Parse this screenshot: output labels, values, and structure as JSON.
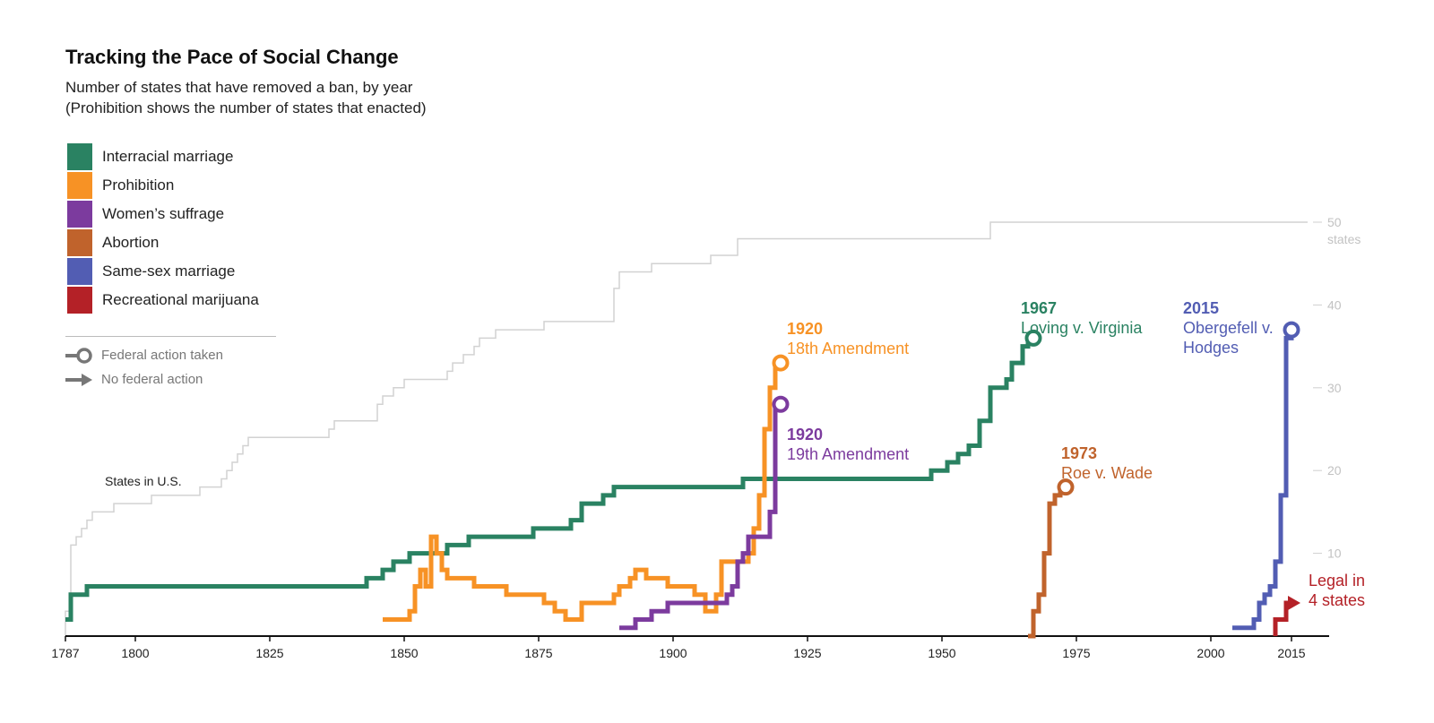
{
  "chart_data": {
    "type": "line",
    "title": "Tracking the Pace of Social Change",
    "subtitle": [
      "Number of states that have removed a ban, by year",
      "(Prohibition shows the number of states that enacted)"
    ],
    "xlabel": "",
    "ylabel": "",
    "xlim": [
      1787,
      2022
    ],
    "ylim": [
      0,
      50
    ],
    "x_ticks": [
      1787,
      1800,
      1825,
      1850,
      1875,
      1900,
      1925,
      1950,
      1975,
      2000,
      2015
    ],
    "y_ticks": [
      10,
      20,
      30,
      40,
      50
    ],
    "y_tick_labels": [
      "10",
      "20",
      "30",
      "40",
      "50"
    ],
    "y_top_unit": "states",
    "grid": false,
    "legend_position": "left",
    "step": true,
    "reference_series": {
      "name": "States in U.S.",
      "color": "#d2d2d2",
      "points": [
        [
          1787,
          0
        ],
        [
          1787,
          3
        ],
        [
          1788,
          11
        ],
        [
          1789,
          12
        ],
        [
          1790,
          13
        ],
        [
          1791,
          14
        ],
        [
          1792,
          15
        ],
        [
          1796,
          16
        ],
        [
          1803,
          17
        ],
        [
          1812,
          18
        ],
        [
          1816,
          19
        ],
        [
          1817,
          20
        ],
        [
          1818,
          21
        ],
        [
          1819,
          22
        ],
        [
          1820,
          23
        ],
        [
          1821,
          24
        ],
        [
          1836,
          25
        ],
        [
          1837,
          26
        ],
        [
          1845,
          28
        ],
        [
          1846,
          29
        ],
        [
          1848,
          30
        ],
        [
          1850,
          31
        ],
        [
          1858,
          32
        ],
        [
          1859,
          33
        ],
        [
          1861,
          34
        ],
        [
          1863,
          35
        ],
        [
          1864,
          36
        ],
        [
          1867,
          37
        ],
        [
          1876,
          38
        ],
        [
          1889,
          42
        ],
        [
          1890,
          44
        ],
        [
          1896,
          45
        ],
        [
          1907,
          46
        ],
        [
          1912,
          48
        ],
        [
          1959,
          50
        ],
        [
          2018,
          50
        ]
      ]
    },
    "series": [
      {
        "name": "Interracial marriage",
        "color": "#2a8262",
        "end": "circle",
        "points": [
          [
            1787,
            2
          ],
          [
            1788,
            5
          ],
          [
            1791,
            6
          ],
          [
            1843,
            7
          ],
          [
            1846,
            8
          ],
          [
            1848,
            9
          ],
          [
            1851,
            10
          ],
          [
            1858,
            11
          ],
          [
            1862,
            12
          ],
          [
            1874,
            13
          ],
          [
            1881,
            14
          ],
          [
            1883,
            16
          ],
          [
            1887,
            17
          ],
          [
            1889,
            18
          ],
          [
            1912,
            18
          ],
          [
            1913,
            19
          ],
          [
            1948,
            20
          ],
          [
            1951,
            21
          ],
          [
            1953,
            22
          ],
          [
            1955,
            23
          ],
          [
            1957,
            26
          ],
          [
            1959,
            30
          ],
          [
            1962,
            31
          ],
          [
            1963,
            33
          ],
          [
            1965,
            35
          ],
          [
            1966,
            36
          ],
          [
            1967,
            36
          ]
        ],
        "annotation_year": "1967",
        "annotation_text": "Loving v. Virginia"
      },
      {
        "name": "Prohibition",
        "color": "#f79225",
        "end": "circle",
        "points": [
          [
            1846,
            2
          ],
          [
            1851,
            3
          ],
          [
            1852,
            6
          ],
          [
            1853,
            8
          ],
          [
            1854,
            6
          ],
          [
            1855,
            12
          ],
          [
            1856,
            10
          ],
          [
            1857,
            8
          ],
          [
            1858,
            7
          ],
          [
            1859,
            7
          ],
          [
            1863,
            6
          ],
          [
            1869,
            5
          ],
          [
            1875,
            5
          ],
          [
            1876,
            4
          ],
          [
            1878,
            3
          ],
          [
            1880,
            2
          ],
          [
            1883,
            4
          ],
          [
            1884,
            4
          ],
          [
            1889,
            5
          ],
          [
            1890,
            6
          ],
          [
            1892,
            7
          ],
          [
            1893,
            8
          ],
          [
            1895,
            7
          ],
          [
            1899,
            6
          ],
          [
            1904,
            5
          ],
          [
            1906,
            3
          ],
          [
            1908,
            5
          ],
          [
            1909,
            9
          ],
          [
            1911,
            9
          ],
          [
            1914,
            10
          ],
          [
            1915,
            13
          ],
          [
            1916,
            17
          ],
          [
            1917,
            25
          ],
          [
            1918,
            30
          ],
          [
            1919,
            33
          ],
          [
            1920,
            33
          ]
        ],
        "annotation_year": "1920",
        "annotation_text": "18th Amendment"
      },
      {
        "name": "Women’s suffrage",
        "color": "#7c3b9e",
        "end": "circle",
        "points": [
          [
            1890,
            1
          ],
          [
            1893,
            2
          ],
          [
            1896,
            3
          ],
          [
            1899,
            4
          ],
          [
            1910,
            5
          ],
          [
            1911,
            6
          ],
          [
            1912,
            9
          ],
          [
            1913,
            10
          ],
          [
            1914,
            12
          ],
          [
            1918,
            15
          ],
          [
            1919,
            28
          ],
          [
            1920,
            28
          ]
        ],
        "annotation_year": "1920",
        "annotation_text": "19th Amendment"
      },
      {
        "name": "Abortion",
        "color": "#c0632c",
        "end": "circle",
        "points": [
          [
            1966,
            0
          ],
          [
            1967,
            3
          ],
          [
            1968,
            5
          ],
          [
            1969,
            10
          ],
          [
            1970,
            16
          ],
          [
            1971,
            17
          ],
          [
            1972,
            18
          ],
          [
            1973,
            18
          ]
        ],
        "annotation_year": "1973",
        "annotation_text": "Roe v. Wade"
      },
      {
        "name": "Same-sex marriage",
        "color": "#525db3",
        "end": "circle",
        "points": [
          [
            2004,
            1
          ],
          [
            2008,
            2
          ],
          [
            2009,
            4
          ],
          [
            2010,
            5
          ],
          [
            2011,
            6
          ],
          [
            2012,
            9
          ],
          [
            2013,
            17
          ],
          [
            2014,
            36
          ],
          [
            2015,
            37
          ]
        ],
        "annotation_year": "2015",
        "annotation_text": [
          "Obergefell v.",
          "Hodges"
        ]
      },
      {
        "name": "Recreational marijuana",
        "color": "#b42127",
        "end": "arrow",
        "points": [
          [
            2012,
            0
          ],
          [
            2012,
            2
          ],
          [
            2014,
            4
          ],
          [
            2015,
            4
          ]
        ],
        "annotation_year": "",
        "annotation_text": [
          "Legal in",
          "4 states"
        ]
      }
    ],
    "reference_label": "States in U.S."
  },
  "key": {
    "federal_action": "Federal action taken",
    "no_federal_action": "No federal action"
  }
}
